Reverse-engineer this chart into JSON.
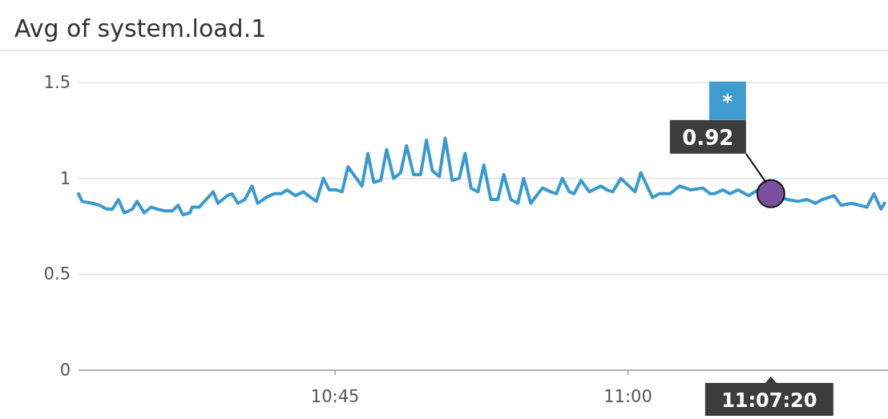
{
  "chart_data": {
    "type": "line",
    "title": "Avg of system.load.1",
    "xlim": [
      10.531,
      11.222
    ],
    "ylim": [
      0,
      1.5
    ],
    "xticks": [
      {
        "value": 10.75,
        "label": "10:45"
      },
      {
        "value": 11,
        "label": "11:00"
      }
    ],
    "yticks": [
      0,
      0.5,
      1,
      1.5
    ],
    "grid": "y",
    "series": [
      {
        "color": "#3a9ad0",
        "marker": "none",
        "x": [
          10.531,
          10.534,
          10.543,
          10.549,
          10.555,
          10.56,
          10.565,
          10.57,
          10.577,
          10.581,
          10.587,
          10.593,
          10.598,
          10.605,
          10.611,
          10.616,
          10.62,
          10.626,
          10.628,
          10.634,
          10.64,
          10.646,
          10.65,
          10.658,
          10.662,
          10.667,
          10.673,
          10.679,
          10.684,
          10.691,
          10.698,
          10.704,
          10.709,
          10.716,
          10.723,
          10.727,
          10.734,
          10.74,
          10.745,
          10.751,
          10.756,
          10.761,
          10.773,
          10.778,
          10.783,
          10.789,
          10.794,
          10.8,
          10.806,
          10.811,
          10.817,
          10.823,
          10.828,
          10.833,
          10.839,
          10.844,
          10.85,
          10.856,
          10.861,
          10.866,
          10.872,
          10.877,
          10.883,
          10.889,
          10.894,
          10.9,
          10.906,
          10.911,
          10.917,
          10.927,
          10.934,
          10.939,
          10.944,
          10.95,
          10.954,
          10.96,
          10.967,
          10.977,
          10.982,
          10.987,
          10.994,
          11.006,
          11.011,
          11.021,
          11.027,
          11.036,
          11.044,
          11.054,
          11.064,
          11.07,
          11.074,
          11.081,
          11.087,
          11.094,
          11.103,
          11.111,
          11.136,
          11.145,
          11.153,
          11.16,
          11.166,
          11.176,
          11.182,
          11.191,
          11.204,
          11.21,
          11.216,
          11.219
        ],
        "values": [
          0.92,
          0.88,
          0.87,
          0.86,
          0.84,
          0.84,
          0.89,
          0.82,
          0.84,
          0.88,
          0.82,
          0.85,
          0.84,
          0.83,
          0.83,
          0.86,
          0.81,
          0.82,
          0.85,
          0.85,
          0.89,
          0.93,
          0.87,
          0.91,
          0.92,
          0.87,
          0.89,
          0.96,
          0.87,
          0.9,
          0.92,
          0.92,
          0.94,
          0.91,
          0.93,
          0.91,
          0.88,
          1.0,
          0.94,
          0.94,
          0.93,
          1.06,
          0.96,
          1.13,
          0.98,
          0.99,
          1.15,
          1.0,
          1.03,
          1.17,
          1.02,
          1.02,
          1.2,
          1.04,
          1.01,
          1.21,
          0.99,
          1.0,
          1.13,
          0.95,
          0.93,
          1.07,
          0.89,
          0.89,
          1.02,
          0.89,
          0.87,
          1.0,
          0.87,
          0.95,
          0.93,
          0.92,
          1.0,
          0.93,
          0.92,
          0.99,
          0.93,
          0.96,
          0.94,
          0.93,
          1.0,
          0.93,
          1.03,
          0.9,
          0.92,
          0.92,
          0.96,
          0.94,
          0.95,
          0.92,
          0.92,
          0.94,
          0.92,
          0.94,
          0.91,
          0.94,
          0.89,
          0.88,
          0.89,
          0.87,
          0.89,
          0.91,
          0.86,
          0.87,
          0.85,
          0.92,
          0.84,
          0.87
        ]
      },
      {
        "type": "scatter",
        "color": "#7b4fa0",
        "marker": "circle",
        "x": [
          11.122
        ],
        "values": [
          0.92
        ]
      }
    ],
    "annotations": [
      {
        "text": "0.92",
        "x": 11.122,
        "y": 0.92
      },
      "*",
      "11:07:20"
    ]
  }
}
